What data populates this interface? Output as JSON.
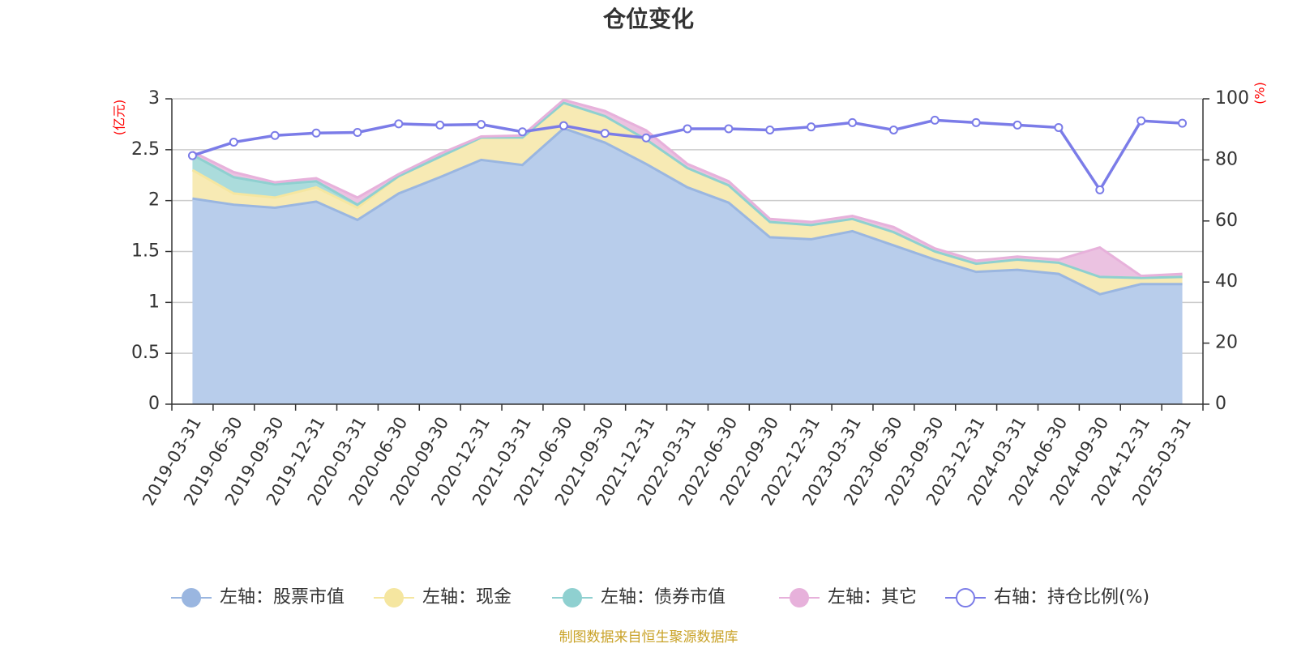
{
  "chart_data": {
    "type": "area",
    "title": "仓位变化",
    "left_unit": "(亿元)",
    "right_unit": "(%)",
    "source": "制图数据来自恒生聚源数据库",
    "x": [
      "2019-03-31",
      "2019-06-30",
      "2019-09-30",
      "2019-12-31",
      "2020-03-31",
      "2020-06-30",
      "2020-09-30",
      "2020-12-31",
      "2021-03-31",
      "2021-06-30",
      "2021-09-30",
      "2021-12-31",
      "2022-03-31",
      "2022-06-30",
      "2022-09-30",
      "2022-12-31",
      "2023-03-31",
      "2023-06-30",
      "2023-09-30",
      "2023-12-31",
      "2024-03-31",
      "2024-06-30",
      "2024-09-30",
      "2024-12-31",
      "2025-03-31"
    ],
    "left_axis": {
      "min": 0,
      "max": 3,
      "ticks": [
        "0",
        "0.5",
        "1",
        "1.5",
        "2",
        "2.5",
        "3"
      ]
    },
    "right_axis": {
      "min": 0,
      "max": 100,
      "ticks": [
        "0",
        "20",
        "40",
        "60",
        "80",
        "100"
      ]
    },
    "grid": true,
    "legend_position": "bottom",
    "stacked_series": [
      {
        "name": "左轴：股票市值",
        "color": "#9ab6e0",
        "fill": "#b8cdeb",
        "values": [
          2.02,
          1.96,
          1.93,
          1.99,
          1.81,
          2.07,
          2.23,
          2.4,
          2.35,
          2.71,
          2.57,
          2.36,
          2.13,
          1.98,
          1.64,
          1.62,
          1.7,
          1.56,
          1.42,
          1.3,
          1.32,
          1.28,
          1.08,
          1.18,
          1.18
        ]
      },
      {
        "name": "左轴：现金",
        "color": "#f5e6a0",
        "fill": "#f7eab4",
        "values": [
          0.28,
          0.11,
          0.1,
          0.14,
          0.12,
          0.17,
          0.2,
          0.22,
          0.27,
          0.25,
          0.26,
          0.24,
          0.19,
          0.17,
          0.15,
          0.14,
          0.12,
          0.13,
          0.08,
          0.08,
          0.1,
          0.11,
          0.17,
          0.06,
          0.07
        ]
      },
      {
        "name": "左轴：债券市值",
        "color": "#8fd0d0",
        "fill": "#abdcdc",
        "values": [
          0.15,
          0.16,
          0.13,
          0.06,
          0.03,
          0,
          0,
          0,
          0,
          0,
          0,
          0,
          0,
          0,
          0,
          0,
          0,
          0,
          0,
          0,
          0,
          0,
          0,
          0,
          0
        ]
      },
      {
        "name": "左轴：其它",
        "color": "#e7b1db",
        "fill": "#ebc2e1",
        "values": [
          0.03,
          0.05,
          0.02,
          0.03,
          0.07,
          0.02,
          0.03,
          0.01,
          0.02,
          0.03,
          0.05,
          0.09,
          0.04,
          0.04,
          0.03,
          0.03,
          0.03,
          0.05,
          0.03,
          0.03,
          0.03,
          0.03,
          0.29,
          0.02,
          0.03
        ]
      }
    ],
    "line_series": {
      "name": "右轴：持仓比例(%)",
      "color": "#7b7ce8",
      "values": [
        81.4,
        85.8,
        88.0,
        88.8,
        89.0,
        91.8,
        91.4,
        91.6,
        89.2,
        91.2,
        88.7,
        87.2,
        90.2,
        90.2,
        89.8,
        90.8,
        92.2,
        89.8,
        93.0,
        92.2,
        91.4,
        90.6,
        70.2,
        92.8,
        92.0
      ]
    }
  }
}
